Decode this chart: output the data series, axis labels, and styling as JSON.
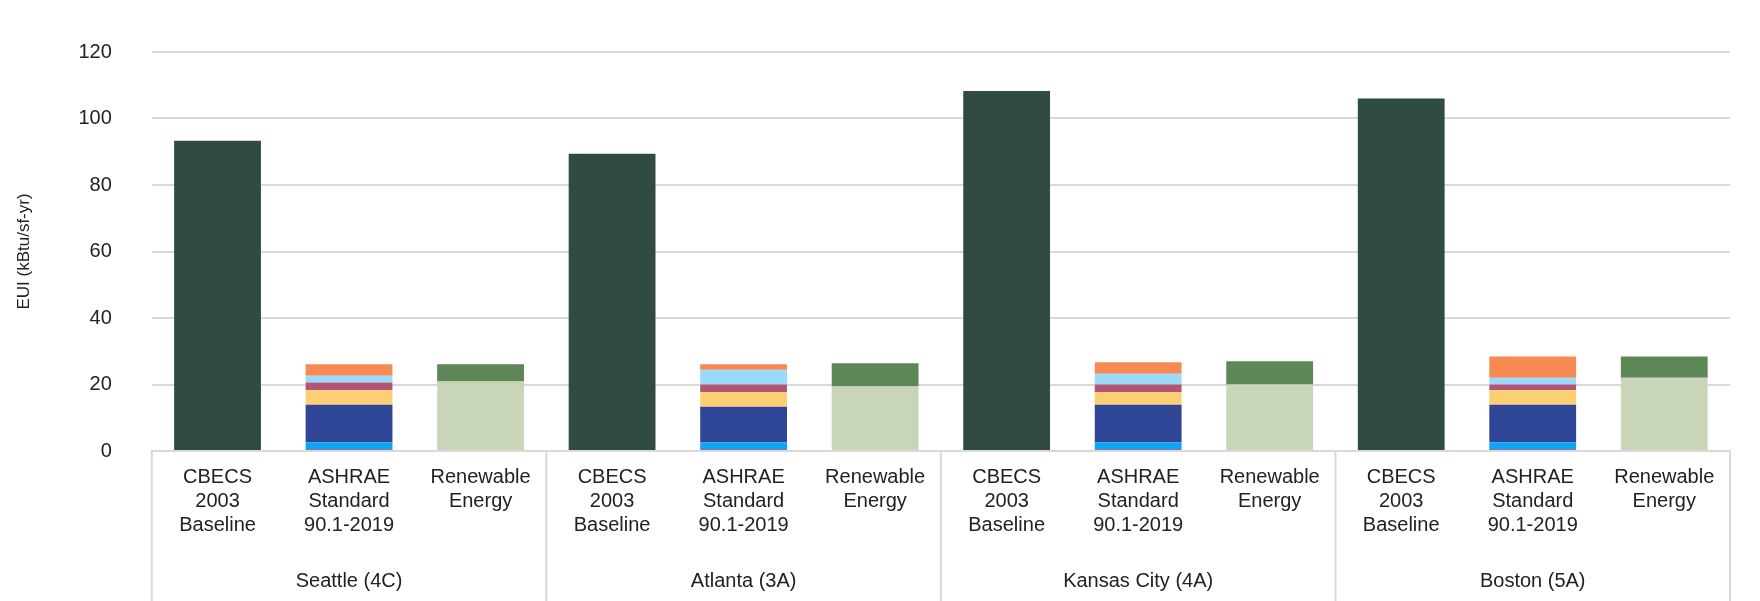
{
  "chart_data": {
    "type": "bar",
    "stacked": true,
    "ylabel": "EUI (kBtu/sf-yr)",
    "categories": [
      "CBECS 2003 Baseline",
      "ASHRAE Standard 90.1-2019",
      "Renewable Energy",
      "CBECS 2003 Baseline",
      "ASHRAE Standard 90.1-2019",
      "Renewable Energy",
      "CBECS 2003 Baseline",
      "ASHRAE Standard 90.1-2019",
      "Renewable Energy",
      "CBECS 2003 Baseline",
      "ASHRAE Standard 90.1-2019",
      "Renewable Energy"
    ],
    "annotations": [
      "Seattle (4C)",
      "Atlanta (3A)",
      "Kansas City (4A)",
      "Boston (5A)"
    ],
    "series": [
      {
        "color": "#2f4b43",
        "values": [
          93.3,
          null,
          null,
          89.4,
          null,
          null,
          108.3,
          null,
          null,
          106.0,
          null,
          null
        ]
      },
      {
        "color": "#8e6bb5",
        "values": [
          null,
          0.6,
          null,
          null,
          0.6,
          null,
          null,
          0.6,
          null,
          null,
          0.6,
          null
        ]
      },
      {
        "color": "#0ea5f5",
        "values": [
          null,
          2.0,
          null,
          null,
          2.0,
          null,
          null,
          2.0,
          null,
          null,
          2.0,
          null
        ]
      },
      {
        "color": "#2f4596",
        "values": [
          null,
          11.3,
          null,
          null,
          10.7,
          null,
          null,
          11.3,
          null,
          null,
          11.3,
          null
        ]
      },
      {
        "color": "#fbcf72",
        "values": [
          null,
          4.4,
          null,
          null,
          4.4,
          null,
          null,
          3.8,
          null,
          null,
          4.4,
          null
        ]
      },
      {
        "color": "#b05575",
        "values": [
          null,
          2.3,
          null,
          null,
          2.3,
          null,
          null,
          2.3,
          null,
          null,
          1.7,
          null
        ]
      },
      {
        "color": "#9cdafc",
        "values": [
          null,
          2.0,
          null,
          null,
          4.4,
          null,
          null,
          3.2,
          null,
          null,
          2.0,
          null
        ]
      },
      {
        "color": "#f78a52",
        "values": [
          null,
          3.5,
          null,
          null,
          1.7,
          null,
          null,
          3.5,
          null,
          null,
          6.4,
          null
        ]
      },
      {
        "color": "#c8d5b9",
        "values": [
          null,
          null,
          20.9,
          null,
          null,
          19.4,
          null,
          null,
          20.0,
          null,
          null,
          22.0
        ]
      },
      {
        "color": "#5e8656",
        "values": [
          null,
          null,
          5.2,
          null,
          null,
          7.0,
          null,
          null,
          7.0,
          null,
          null,
          6.4
        ]
      }
    ],
    "ylim": [
      0,
      120
    ],
    "yticks": [
      0,
      20,
      40,
      60,
      80,
      100,
      120
    ],
    "grid": "y",
    "legend": false
  }
}
